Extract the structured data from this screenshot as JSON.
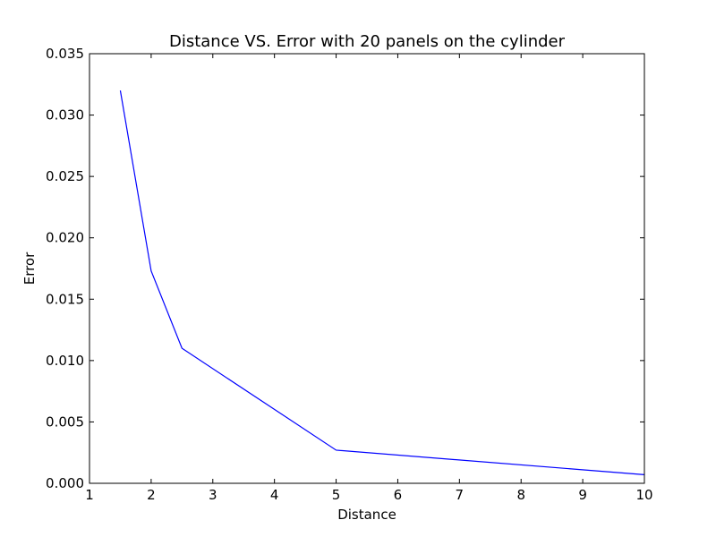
{
  "chart_data": {
    "type": "line",
    "title": "Distance VS. Error with 20 panels on the cylinder",
    "xlabel": "Distance",
    "ylabel": "Error",
    "xlim": [
      1,
      10
    ],
    "ylim": [
      0,
      0.035
    ],
    "x_ticks": [
      1,
      2,
      3,
      4,
      5,
      6,
      7,
      8,
      9,
      10
    ],
    "x_tick_labels": [
      "1",
      "2",
      "3",
      "4",
      "5",
      "6",
      "7",
      "8",
      "9",
      "10"
    ],
    "y_ticks": [
      0,
      0.005,
      0.01,
      0.015,
      0.02,
      0.025,
      0.03,
      0.035
    ],
    "y_tick_labels": [
      "0.000",
      "0.005",
      "0.010",
      "0.015",
      "0.020",
      "0.025",
      "0.030",
      "0.035"
    ],
    "grid": false,
    "legend": "none",
    "series": [
      {
        "color": "#0000ff",
        "x": [
          1.5,
          2,
          2.5,
          5,
          10
        ],
        "y": [
          0.032,
          0.0173,
          0.011,
          0.0027,
          0.0007
        ]
      }
    ]
  }
}
